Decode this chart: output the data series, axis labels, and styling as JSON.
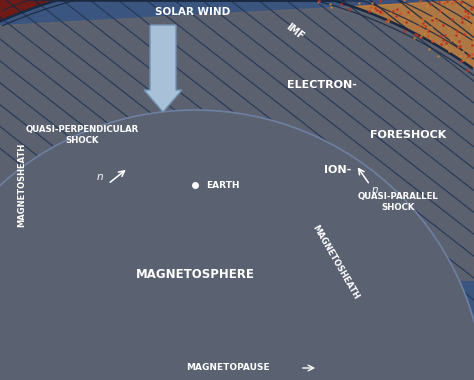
{
  "figsize": [
    4.74,
    3.8
  ],
  "dpi": 100,
  "colors": {
    "background": "#3a5078",
    "magnetosphere": "#5a6272",
    "magnetosheath_blue": "#3a5882",
    "solar_wind_blue": "#3a5888",
    "foreshock_orange_light": "#c8823a",
    "foreshock_orange": "#b87030",
    "foreshock_red": "#8a2018",
    "foreshock_red_dark": "#6a1008",
    "imf_line": "#1a2840",
    "bow_line": "#1a2840",
    "arrow_fill": "#a8c0d8",
    "arrow_edge": "#7090b0"
  },
  "labels": {
    "solar_wind": "SOLAR WIND",
    "imf": "IMF",
    "electron": "ELECTRON-",
    "foreshock": "FORESHOCK",
    "ion": "ION-",
    "quasi_perp": "QUASI-PERPENDICULAR\nSHOCK",
    "quasi_par": "QUASI-PARALLEL\nSHOCK",
    "magnetosheath_left": "MAGNETOSHEATH",
    "magnetosheath_right": "MAGNETOSHEATH",
    "magnetosphere": "MAGNETOSPHERE",
    "earth": "EARTH",
    "magnetopause": "MAGNETOPAUSE"
  }
}
